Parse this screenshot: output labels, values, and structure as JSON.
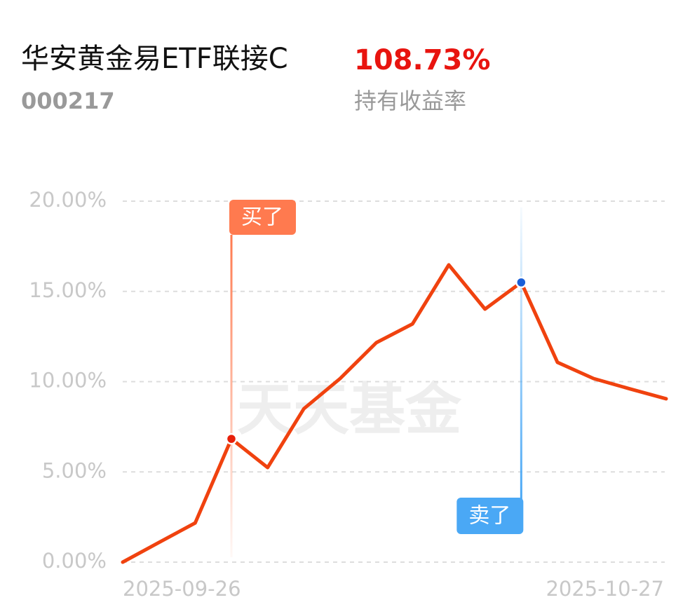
{
  "header": {
    "title": "华安黄金易ETF联接C",
    "code": "000217",
    "return_value": "108.73%",
    "return_label": "持有收益率"
  },
  "chart_data": {
    "type": "line",
    "watermark": "天天基金",
    "categories": [
      "2025-09-26",
      null,
      null,
      null,
      null,
      null,
      null,
      null,
      null,
      null,
      null,
      null,
      null,
      null,
      null,
      "2025-10-27"
    ],
    "series": [
      {
        "name": "持有收益率",
        "color": "#f0420f",
        "values": [
          0,
          1.09,
          2.17,
          6.83,
          5.24,
          8.5,
          10.17,
          12.16,
          13.2,
          16.47,
          14.02,
          15.5,
          11.07,
          10.17,
          9.6,
          9.05
        ]
      }
    ],
    "ylim": [
      0,
      20
    ],
    "yticks": [
      {
        "value": 0,
        "label": "0.00%"
      },
      {
        "value": 5,
        "label": "5.00%"
      },
      {
        "value": 10,
        "label": "10.00%"
      },
      {
        "value": 15,
        "label": "15.00%"
      },
      {
        "value": 20,
        "label": "20.00%"
      }
    ],
    "grid": true,
    "buy_label": "买了",
    "sell_label": "卖了"
  }
}
